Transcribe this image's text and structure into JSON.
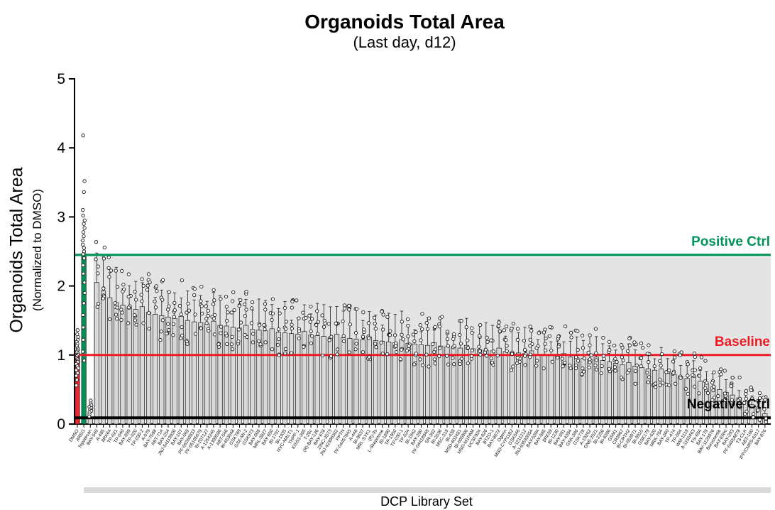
{
  "title": "Organoids Total Area",
  "subtitle": "(Last day, d12)",
  "y_axis": {
    "label": "Organoids Total Area",
    "sublabel": "(Normalized to DMSO)"
  },
  "x_axis": {
    "label": "DCP Library Set"
  },
  "annotations": {
    "positive_ctrl": {
      "text": "Positive Ctrl",
      "value": 2.45,
      "color": "#009257"
    },
    "baseline": {
      "text": "Baseline",
      "value": 1.0,
      "color": "#EC1C24"
    },
    "negative_ctrl": {
      "text": "Negative Ctrl",
      "value": 0.09,
      "color": "#000000"
    }
  },
  "chart_data": {
    "type": "bar",
    "title": "Organoids Total Area",
    "subtitle": "(Last day, d12)",
    "xlabel": "DCP Library Set",
    "ylabel": "Organoids Total Area (Normalized to DMSO)",
    "ylim": [
      0,
      5
    ],
    "y_ticks": [
      0,
      1,
      2,
      3,
      4,
      5
    ],
    "grid": false,
    "shaded_band": {
      "from": 0.09,
      "to": 2.42,
      "color": "#E4E4E4"
    },
    "reference_lines": [
      {
        "label": "Positive Ctrl",
        "value": 2.45,
        "color": "#009257",
        "width": 3.2
      },
      {
        "label": "Baseline",
        "value": 1.0,
        "color": "#EC1C24",
        "width": 3.0
      },
      {
        "label": "Negative Ctrl",
        "value": 0.09,
        "color": "#000000",
        "width": 4.0
      }
    ],
    "bar_colors": {
      "DMSO": "#E62A2F",
      "AREG": "#009257",
      "default": "#D9D9D9"
    },
    "marker_style": "open circles (replicates) with upward SD whiskers; per-replicate values for library bars estimated from plot",
    "categories": [
      "DMSO",
      "AREG",
      "Topotecan",
      "BAY-549",
      "A-485",
      "8RK64",
      "TP-021",
      "TP-040",
      "BAY-899",
      "TP-020",
      "TP-030-2",
      "A-079",
      "BAY-7598",
      "ABT-714",
      "BAY-254",
      "JNJ-54119936",
      "BAY-107",
      "BAY-069",
      "PF-06260933",
      "PF-05105679",
      "BI-207127",
      "A-1254245",
      "A-1399586",
      "ABT-546",
      "BI-653048",
      "GSK789",
      "GSK-MI-2",
      "GSK973",
      "BAY-008",
      "MRL-3827",
      "BAY-650",
      "BI-1797",
      "BI-1935",
      "NVC-MALT1",
      "THPP-1",
      "KISS1-305",
      "T-26c",
      "(R)-BAY-126",
      "BAY-678",
      "ZINC-3573",
      "JNJ-42396302",
      "PPTN",
      "PF-04457845",
      "A-446",
      "BI-9637",
      "MRL-SYK1",
      "(R)-9s",
      "L-Skepinone",
      "BI-1890",
      "TP-1950",
      "TP-030-1",
      "TP-024",
      "BI-1942",
      "BAY-390",
      "PF-04418948",
      "SR-302",
      "BI-2536",
      "MSC-318",
      "BI-438",
      "MSD-602481",
      "BI-605906",
      "MSD-M1PAM",
      "UCSF924",
      "BAY-826",
      "BTZO-1",
      "BAY-8672",
      "Ogerin",
      "MSD-CYP11B2",
      "GSK046",
      "A-1211212",
      "JNJ-63533054",
      "BAY-5394",
      "BAY-985",
      "8RK59",
      "BI-1230",
      "BAY-091",
      "BAY-4394",
      "GSK-386",
      "GSK778",
      "A-19262",
      "GNE-2021",
      "BI-2256",
      "BI-6396",
      "GSM1",
      "CR3967",
      "BI-CRTH2",
      "BI-653971",
      "BI-9915",
      "GSK179",
      "BAY-620",
      "MRK-784",
      "BAY-360",
      "TP-474",
      "TP-004",
      "WM-1119",
      "A-1155463",
      "FS-694",
      "BAY-179",
      "BAY-1125976",
      "Borussertib",
      "BAY-ERKi",
      "BAY-293",
      "PF-04554878",
      "T3-CLK",
      "ABT-100",
      "IPP/CNRS-A017",
      "BAY-876"
    ],
    "values": [
      1.0,
      2.47,
      0.1,
      2.05,
      1.93,
      1.83,
      1.76,
      1.72,
      1.69,
      1.66,
      1.7,
      1.62,
      1.59,
      1.57,
      1.55,
      1.53,
      1.56,
      1.5,
      1.48,
      1.47,
      1.45,
      1.49,
      1.43,
      1.42,
      1.4,
      1.39,
      1.43,
      1.37,
      1.36,
      1.35,
      1.38,
      1.33,
      1.32,
      1.31,
      1.3,
      1.34,
      1.29,
      1.28,
      1.27,
      1.26,
      1.3,
      1.25,
      1.24,
      1.23,
      1.22,
      1.26,
      1.21,
      1.2,
      1.19,
      1.18,
      1.22,
      1.17,
      1.16,
      1.15,
      1.14,
      1.18,
      1.13,
      1.12,
      1.11,
      1.1,
      1.14,
      1.09,
      1.08,
      1.07,
      1.06,
      1.1,
      1.05,
      1.04,
      1.03,
      1.02,
      1.06,
      1.01,
      1.0,
      0.99,
      0.98,
      1.02,
      0.97,
      0.96,
      0.95,
      0.94,
      0.97,
      0.92,
      0.9,
      0.88,
      0.86,
      0.89,
      0.84,
      0.82,
      0.8,
      0.78,
      0.8,
      0.75,
      0.72,
      0.69,
      0.66,
      0.68,
      0.62,
      0.58,
      0.54,
      0.5,
      0.46,
      0.42,
      0.38,
      0.33,
      0.28,
      0.22,
      0.15
    ],
    "special_points": {
      "DMSO": [
        1.36,
        1.3,
        1.26,
        1.22,
        1.19,
        1.16,
        1.13,
        1.1,
        1.08,
        1.06,
        1.04,
        1.02,
        1.0,
        0.98,
        0.96,
        0.94,
        0.92,
        0.9,
        0.87,
        0.84,
        0.81,
        0.78,
        0.74,
        0.7,
        0.64,
        0.56
      ],
      "AREG": [
        4.18,
        3.52,
        3.36,
        3.1,
        3.02,
        2.95,
        2.9,
        2.84,
        2.78,
        2.72,
        2.66,
        2.6,
        2.55,
        2.5,
        2.46,
        2.4,
        2.3,
        2.18,
        2.05,
        1.9,
        1.75,
        1.58,
        1.4,
        1.22,
        1.05,
        0.92
      ],
      "Topotecan": [
        0.34,
        0.3,
        0.27,
        0.25,
        0.23,
        0.21,
        0.19,
        0.17,
        0.14,
        0.11
      ]
    }
  }
}
